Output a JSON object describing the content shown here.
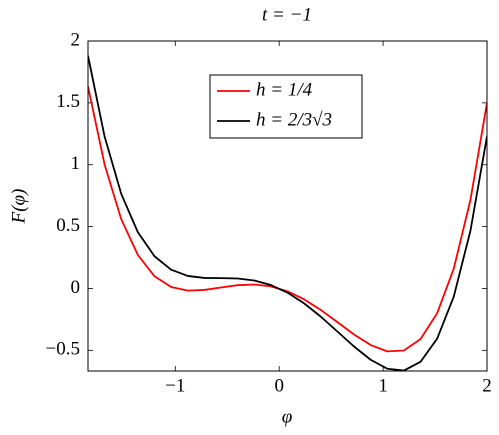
{
  "chart_data": {
    "type": "line",
    "title": "t = −1",
    "x_label": "φ",
    "y_label": "F(φ)",
    "x": [
      -1.84,
      -1.68,
      -1.52,
      -1.36,
      -1.2,
      -1.04,
      -0.88,
      -0.72,
      -0.56,
      -0.4,
      -0.24,
      -0.08,
      0.08,
      0.24,
      0.4,
      0.56,
      0.72,
      0.88,
      1.04,
      1.2,
      1.36,
      1.52,
      1.68,
      1.84,
      2.0
    ],
    "series": [
      {
        "name": "h = 1/4",
        "color": "#ff0000",
        "values": [
          1.6328,
          1.0003,
          0.5593,
          0.2705,
          0.0984,
          0.0117,
          -0.0173,
          -0.012,
          0.0078,
          0.0264,
          0.032,
          0.0168,
          -0.0232,
          -0.088,
          -0.1736,
          -0.2722,
          -0.372,
          -0.4573,
          -0.5083,
          -0.5016,
          -0.4095,
          -0.2007,
          0.1603,
          0.7128,
          1.5
        ]
      },
      {
        "name": "h = 2/3√3",
        "color": "#000000",
        "values": [
          1.881,
          1.2269,
          0.7643,
          0.454,
          0.2603,
          0.152,
          0.1014,
          0.0851,
          0.0833,
          0.0804,
          0.0644,
          0.0276,
          -0.034,
          -0.1204,
          -0.2276,
          -0.3477,
          -0.4691,
          -0.576,
          -0.6486,
          -0.6635,
          -0.593,
          -0.4057,
          -0.0663,
          0.4646,
          1.2302
        ]
      }
    ],
    "xlim": [
      -1.84,
      2
    ],
    "ylim": [
      -0.667,
      2
    ],
    "xticks": [
      {
        "value": -1,
        "label": "−1"
      },
      0,
      1,
      2
    ],
    "yticks": [
      {
        "value": -0.5,
        "label": "−0.5"
      },
      0,
      0.5,
      1,
      1.5,
      2
    ],
    "legend": "top-center"
  }
}
